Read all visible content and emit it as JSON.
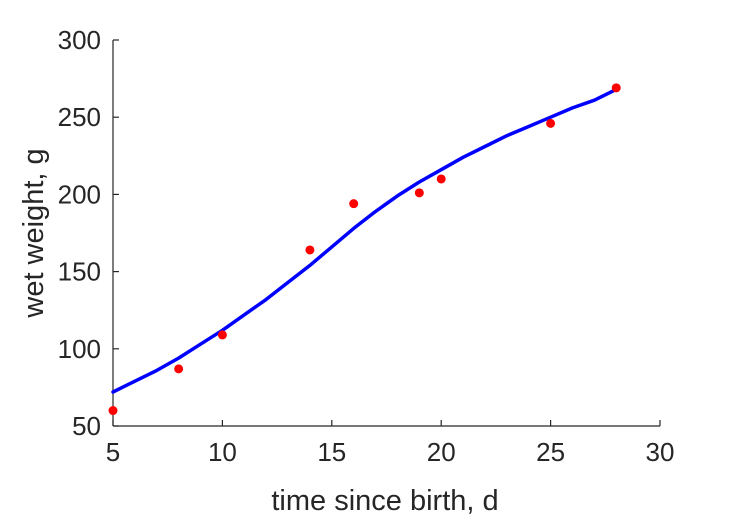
{
  "chart_data": {
    "type": "scatter",
    "title": "",
    "xlabel": "time since birth, d",
    "ylabel": "wet weight, g",
    "xlim": [
      5,
      30
    ],
    "ylim": [
      50,
      300
    ],
    "xticks": [
      5,
      10,
      15,
      20,
      25,
      30
    ],
    "yticks": [
      50,
      100,
      150,
      200,
      250,
      300
    ],
    "grid": false,
    "series": [
      {
        "type": "scatter",
        "color": "#ff0000",
        "x": [
          5,
          8,
          10,
          14,
          16,
          19,
          20,
          25,
          28
        ],
        "y": [
          60,
          87,
          109,
          164,
          194,
          201,
          210,
          246,
          269
        ]
      },
      {
        "type": "line",
        "color": "#0000ff",
        "x": [
          5,
          6,
          7,
          8,
          9,
          10,
          11,
          12,
          13,
          14,
          15,
          16,
          17,
          18,
          19,
          20,
          21,
          22,
          23,
          24,
          25,
          26,
          27,
          28
        ],
        "y": [
          72,
          79,
          86,
          94,
          103,
          112,
          122,
          132,
          143,
          154,
          166,
          178,
          189,
          199,
          208,
          216,
          224,
          231,
          238,
          244,
          250,
          256,
          261,
          268
        ]
      }
    ]
  }
}
